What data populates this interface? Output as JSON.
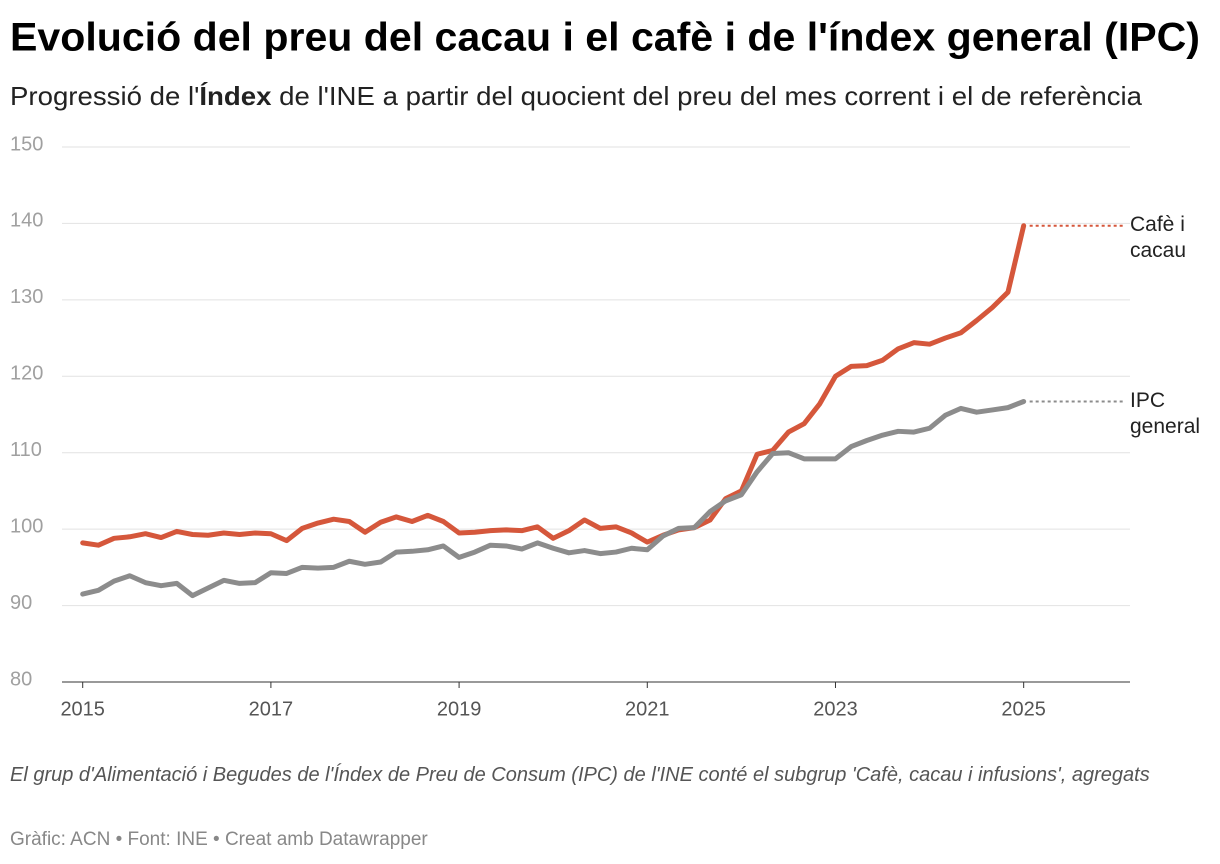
{
  "chart_data": {
    "type": "line",
    "title": "Evolució del preu del cacau i el cafè i de l'índex general (IPC)",
    "subtitle": [
      "Progressió de l'",
      "Índex",
      " de l'INE a partir del quocient del preu del mes corrent i el de referència"
    ],
    "note": "El grup d'Alimentació i Begudes de l'Índex de Preu de Consum (IPC) de l'INE conté el subgrup 'Cafè, cacau i infusions', agregats",
    "source": "Gràfic: ACN • Font: INE • Creat amb Datawrapper",
    "x": [
      2015,
      2015.167,
      2015.333,
      2015.5,
      2015.667,
      2015.833,
      2016,
      2016.167,
      2016.333,
      2016.5,
      2016.667,
      2016.833,
      2017,
      2017.167,
      2017.333,
      2017.5,
      2017.667,
      2017.833,
      2018,
      2018.167,
      2018.333,
      2018.5,
      2018.667,
      2018.833,
      2019,
      2019.167,
      2019.333,
      2019.5,
      2019.667,
      2019.833,
      2020,
      2020.167,
      2020.333,
      2020.5,
      2020.667,
      2020.833,
      2021,
      2021.167,
      2021.333,
      2021.5,
      2021.667,
      2021.833,
      2022,
      2022.167,
      2022.333,
      2022.5,
      2022.667,
      2022.833,
      2023,
      2023.167,
      2023.333,
      2023.5,
      2023.667,
      2023.833,
      2024,
      2024.167,
      2024.333,
      2024.5,
      2024.667,
      2024.833,
      2025
    ],
    "series": [
      {
        "name": "Cafè i cacau",
        "color": "#d5573b",
        "values": [
          98.2,
          97.9,
          98.8,
          99.0,
          99.4,
          98.9,
          99.7,
          99.3,
          99.2,
          99.5,
          99.3,
          99.5,
          99.4,
          98.5,
          100.1,
          100.8,
          101.3,
          101.0,
          99.6,
          100.9,
          101.6,
          101.0,
          101.8,
          101.0,
          99.5,
          99.6,
          99.8,
          99.9,
          99.8,
          100.3,
          98.8,
          99.8,
          101.2,
          100.1,
          100.3,
          99.5,
          98.3,
          99.2,
          99.9,
          100.2,
          101.2,
          104.0,
          105.0,
          109.8,
          110.3,
          112.7,
          113.8,
          116.4,
          120.0,
          121.3,
          121.4,
          122.1,
          123.6,
          124.4,
          124.2,
          125.0,
          125.7,
          127.3,
          129.0,
          131.0,
          139.7
        ]
      },
      {
        "name": "IPC general",
        "color": "#8c8c8c",
        "values": [
          91.5,
          92.0,
          93.2,
          93.9,
          93.0,
          92.6,
          92.9,
          91.3,
          92.3,
          93.3,
          92.9,
          93.0,
          94.3,
          94.2,
          95.0,
          94.9,
          95.0,
          95.8,
          95.4,
          95.7,
          97.0,
          97.1,
          97.3,
          97.8,
          96.3,
          97.0,
          97.9,
          97.8,
          97.4,
          98.2,
          97.5,
          96.9,
          97.2,
          96.8,
          97.0,
          97.5,
          97.3,
          99.1,
          100.1,
          100.2,
          102.3,
          103.7,
          104.5,
          107.5,
          109.9,
          110.0,
          109.2,
          109.2,
          109.2,
          110.8,
          111.6,
          112.3,
          112.8,
          112.7,
          113.2,
          114.9,
          115.8,
          115.3,
          115.6,
          115.9,
          116.7
        ]
      }
    ],
    "xlim": [
      2014.78,
      2026.13
    ],
    "xticks": [
      2015,
      2017,
      2019,
      2021,
      2023,
      2025
    ],
    "ylim": [
      80,
      150
    ],
    "yticks": [
      80,
      90,
      100,
      110,
      120,
      130,
      140,
      150
    ],
    "grid": true
  }
}
